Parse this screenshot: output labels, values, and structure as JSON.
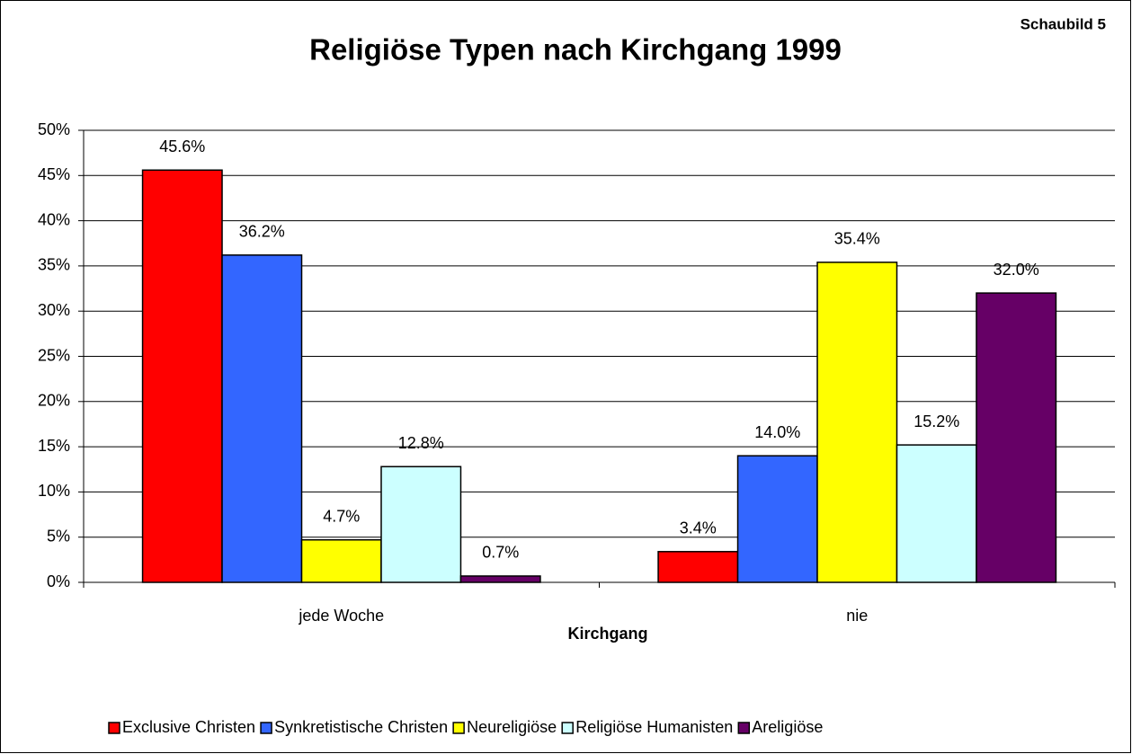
{
  "chart_data": {
    "type": "bar",
    "title": "Religiöse Typen nach Kirchgang 1999",
    "subtitle": "Schaubild 5",
    "x_label": "Kirchgang",
    "categories": [
      "jede Woche",
      "nie"
    ],
    "series": [
      {
        "name": "Exclusive Christen",
        "color": "#ff0000",
        "values": [
          45.6,
          3.4
        ],
        "value_labels": [
          "45.6%",
          "3.4%"
        ]
      },
      {
        "name": "Synkretistische Christen",
        "color": "#3366ff",
        "values": [
          36.2,
          14.0
        ],
        "value_labels": [
          "36.2%",
          "14.0%"
        ]
      },
      {
        "name": "Neureligiöse",
        "color": "#ffff00",
        "values": [
          4.7,
          35.4
        ],
        "value_labels": [
          "4.7%",
          "35.4%"
        ]
      },
      {
        "name": "Religiöse Humanisten",
        "color": "#ccffff",
        "values": [
          12.8,
          15.2
        ],
        "value_labels": [
          "12.8%",
          "15.2%"
        ]
      },
      {
        "name": "Areligiöse",
        "color": "#660066",
        "values": [
          0.7,
          32.0
        ],
        "value_labels": [
          "0.7%",
          "32.0%"
        ]
      }
    ],
    "ylim": [
      0,
      50
    ],
    "yticks": [
      {
        "value": 0,
        "label": "0%"
      },
      {
        "value": 5,
        "label": "5%"
      },
      {
        "value": 10,
        "label": "10%"
      },
      {
        "value": 15,
        "label": "15%"
      },
      {
        "value": 20,
        "label": "20%"
      },
      {
        "value": 25,
        "label": "25%"
      },
      {
        "value": 30,
        "label": "30%"
      },
      {
        "value": 35,
        "label": "35%"
      },
      {
        "value": 40,
        "label": "40%"
      },
      {
        "value": 45,
        "label": "45%"
      },
      {
        "value": 50,
        "label": "50%"
      }
    ],
    "grid": true,
    "legend": "bottom"
  }
}
